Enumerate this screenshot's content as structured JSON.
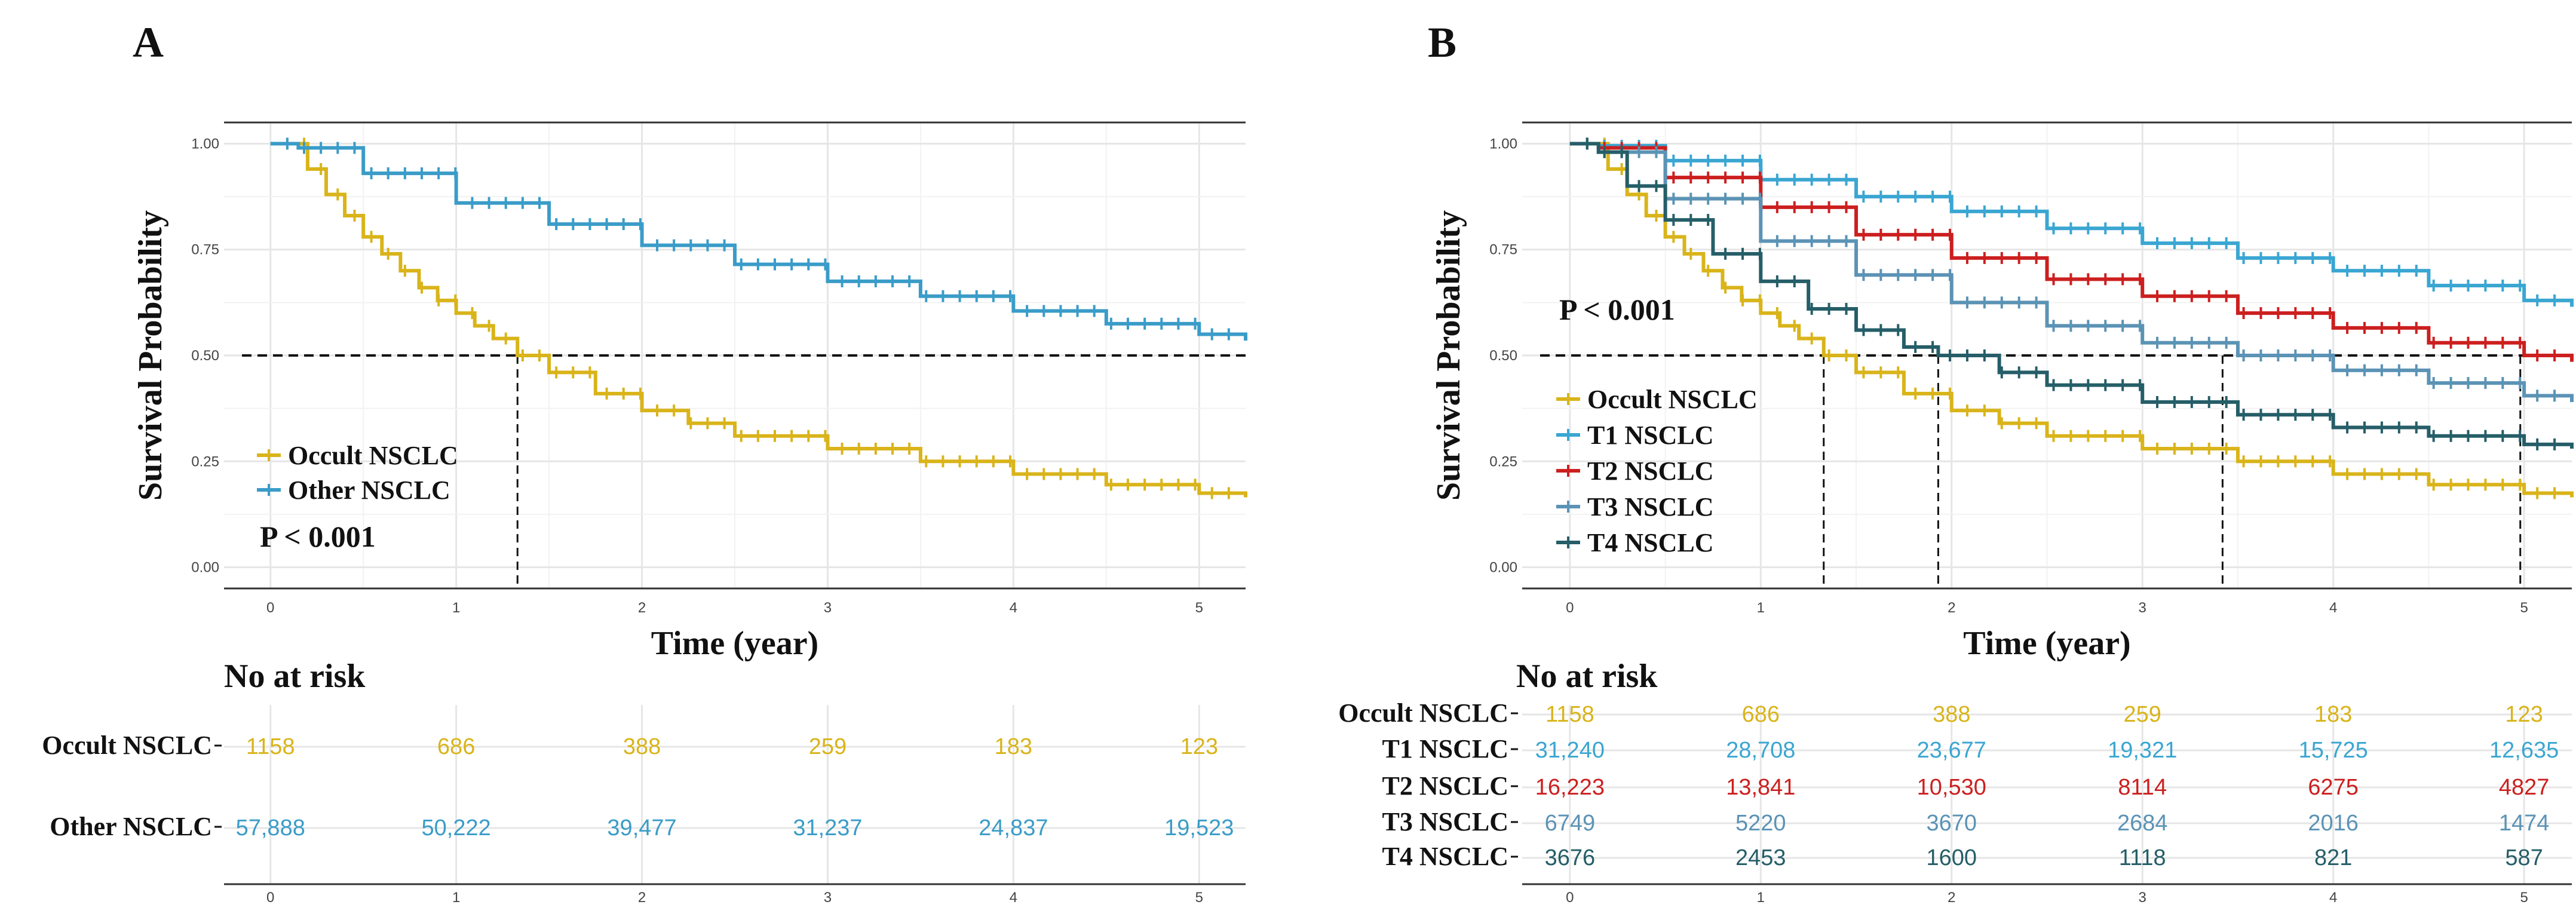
{
  "figure": {
    "panel_a_label": "A",
    "panel_b_label": "B",
    "risk_table_title": "No at risk"
  },
  "colors": {
    "occult": "#D9B41A",
    "other": "#3A9CC8",
    "t1": "#3AA6D2",
    "t2": "#CC1F1F",
    "t3": "#5B93B5",
    "t4": "#255E68",
    "grid": "#E6E6E6",
    "axis": "#333333",
    "text": "#111111"
  },
  "chart_data": [
    {
      "id": "A",
      "type": "line",
      "title": "",
      "xlabel": "Time (year)",
      "ylabel": "Survival Probability",
      "xlim": [
        -0.25,
        5.25
      ],
      "ylim": [
        -0.05,
        1.05
      ],
      "x_ticks": [
        0,
        1,
        2,
        3,
        4,
        5
      ],
      "y_ticks": [
        0.0,
        0.25,
        0.5,
        0.75,
        1.0
      ],
      "y_tick_labels": [
        "0.00",
        "0.25",
        "0.50",
        "0.75",
        "1.00"
      ],
      "grid": true,
      "annotation": "P < 0.001",
      "median_line_y": 0.5,
      "median_drops": [
        {
          "x": 1.33,
          "color": "occult"
        }
      ],
      "series": [
        {
          "name": "Occult NSCLC",
          "color": "occult",
          "key": "occult",
          "x": [
            0,
            0.15,
            0.2,
            0.3,
            0.4,
            0.5,
            0.6,
            0.7,
            0.8,
            0.9,
            1.0,
            1.1,
            1.2,
            1.33,
            1.5,
            1.75,
            2.0,
            2.25,
            2.5,
            3.0,
            3.5,
            4.0,
            4.5,
            5.0,
            5.25
          ],
          "y": [
            1.0,
            1.0,
            0.94,
            0.88,
            0.83,
            0.78,
            0.74,
            0.7,
            0.66,
            0.63,
            0.6,
            0.57,
            0.54,
            0.5,
            0.46,
            0.41,
            0.37,
            0.34,
            0.31,
            0.28,
            0.25,
            0.22,
            0.195,
            0.175,
            0.165
          ]
        },
        {
          "name": "Other NSCLC",
          "color": "other",
          "key": "other",
          "x": [
            0,
            0.15,
            0.5,
            1.0,
            1.5,
            2.0,
            2.5,
            3.0,
            3.5,
            4.0,
            4.5,
            5.0,
            5.25
          ],
          "y": [
            1.0,
            0.99,
            0.93,
            0.86,
            0.81,
            0.76,
            0.715,
            0.675,
            0.64,
            0.605,
            0.575,
            0.55,
            0.535
          ]
        }
      ],
      "risk_table": {
        "times": [
          0,
          1,
          2,
          3,
          4,
          5
        ],
        "rows": [
          {
            "label": "Occult NSCLC",
            "key": "occult",
            "values": [
              "1158",
              "686",
              "388",
              "259",
              "183",
              "123"
            ]
          },
          {
            "label": "Other NSCLC",
            "key": "other",
            "values": [
              "57,888",
              "50,222",
              "39,477",
              "31,237",
              "24,837",
              "19,523"
            ]
          }
        ]
      }
    },
    {
      "id": "B",
      "type": "line",
      "title": "",
      "xlabel": "Time (year)",
      "ylabel": "Survival Probability",
      "xlim": [
        -0.25,
        5.25
      ],
      "ylim": [
        -0.05,
        1.05
      ],
      "x_ticks": [
        0,
        1,
        2,
        3,
        4,
        5
      ],
      "y_ticks": [
        0.0,
        0.25,
        0.5,
        0.75,
        1.0
      ],
      "y_tick_labels": [
        "0.00",
        "0.25",
        "0.50",
        "0.75",
        "1.00"
      ],
      "grid": true,
      "annotation": "P < 0.001",
      "median_line_y": 0.5,
      "median_drops": [
        {
          "x": 1.33,
          "color": "occult"
        },
        {
          "x": 1.93,
          "color": "t4"
        },
        {
          "x": 3.42,
          "color": "t3"
        },
        {
          "x": 4.98,
          "color": "t2"
        }
      ],
      "series": [
        {
          "name": "Occult NSCLC",
          "color": "occult",
          "key": "occult",
          "x": [
            0,
            0.15,
            0.2,
            0.3,
            0.4,
            0.5,
            0.6,
            0.7,
            0.8,
            0.9,
            1.0,
            1.1,
            1.2,
            1.33,
            1.5,
            1.75,
            2.0,
            2.25,
            2.5,
            3.0,
            3.5,
            4.0,
            4.5,
            5.0,
            5.25
          ],
          "y": [
            1.0,
            1.0,
            0.94,
            0.88,
            0.83,
            0.78,
            0.74,
            0.7,
            0.66,
            0.63,
            0.6,
            0.57,
            0.54,
            0.5,
            0.46,
            0.41,
            0.37,
            0.34,
            0.31,
            0.28,
            0.25,
            0.22,
            0.195,
            0.175,
            0.165
          ]
        },
        {
          "name": "T1 NSCLC",
          "color": "t1",
          "key": "t1",
          "x": [
            0,
            0.15,
            0.5,
            1.0,
            1.5,
            2.0,
            2.5,
            3.0,
            3.5,
            4.0,
            4.5,
            5.0,
            5.25
          ],
          "y": [
            1.0,
            0.995,
            0.96,
            0.915,
            0.875,
            0.84,
            0.8,
            0.765,
            0.73,
            0.7,
            0.665,
            0.63,
            0.615
          ]
        },
        {
          "name": "T2 NSCLC",
          "color": "t2",
          "key": "t2",
          "x": [
            0,
            0.15,
            0.5,
            1.0,
            1.5,
            2.0,
            2.5,
            3.0,
            3.5,
            4.0,
            4.5,
            5.0,
            5.25
          ],
          "y": [
            1.0,
            0.99,
            0.92,
            0.85,
            0.785,
            0.73,
            0.68,
            0.64,
            0.6,
            0.565,
            0.53,
            0.5,
            0.485
          ]
        },
        {
          "name": "T3 NSCLC",
          "color": "t3",
          "key": "t3",
          "x": [
            0,
            0.15,
            0.5,
            1.0,
            1.5,
            2.0,
            2.5,
            3.0,
            3.5,
            4.0,
            4.5,
            5.0,
            5.25
          ],
          "y": [
            1.0,
            0.98,
            0.87,
            0.77,
            0.69,
            0.625,
            0.57,
            0.53,
            0.5,
            0.465,
            0.435,
            0.405,
            0.39
          ]
        },
        {
          "name": "T4 NSCLC",
          "color": "t4",
          "key": "t4",
          "x": [
            0,
            0.15,
            0.3,
            0.5,
            0.75,
            1.0,
            1.25,
            1.5,
            1.75,
            1.93,
            2.25,
            2.5,
            3.0,
            3.5,
            4.0,
            4.5,
            5.0,
            5.25
          ],
          "y": [
            1.0,
            0.98,
            0.9,
            0.82,
            0.74,
            0.675,
            0.61,
            0.56,
            0.52,
            0.5,
            0.46,
            0.43,
            0.39,
            0.36,
            0.33,
            0.31,
            0.29,
            0.28
          ]
        }
      ],
      "risk_table": {
        "times": [
          0,
          1,
          2,
          3,
          4,
          5
        ],
        "rows": [
          {
            "label": "Occult NSCLC",
            "key": "occult",
            "values": [
              "1158",
              "686",
              "388",
              "259",
              "183",
              "123"
            ]
          },
          {
            "label": "T1 NSCLC",
            "key": "t1",
            "values": [
              "31,240",
              "28,708",
              "23,677",
              "19,321",
              "15,725",
              "12,635"
            ]
          },
          {
            "label": "T2 NSCLC",
            "key": "t2",
            "values": [
              "16,223",
              "13,841",
              "10,530",
              "8114",
              "6275",
              "4827"
            ]
          },
          {
            "label": "T3 NSCLC",
            "key": "t3",
            "values": [
              "6749",
              "5220",
              "3670",
              "2684",
              "2016",
              "1474"
            ]
          },
          {
            "label": "T4 NSCLC",
            "key": "t4",
            "values": [
              "3676",
              "2453",
              "1600",
              "1118",
              "821",
              "587"
            ]
          }
        ]
      }
    }
  ]
}
